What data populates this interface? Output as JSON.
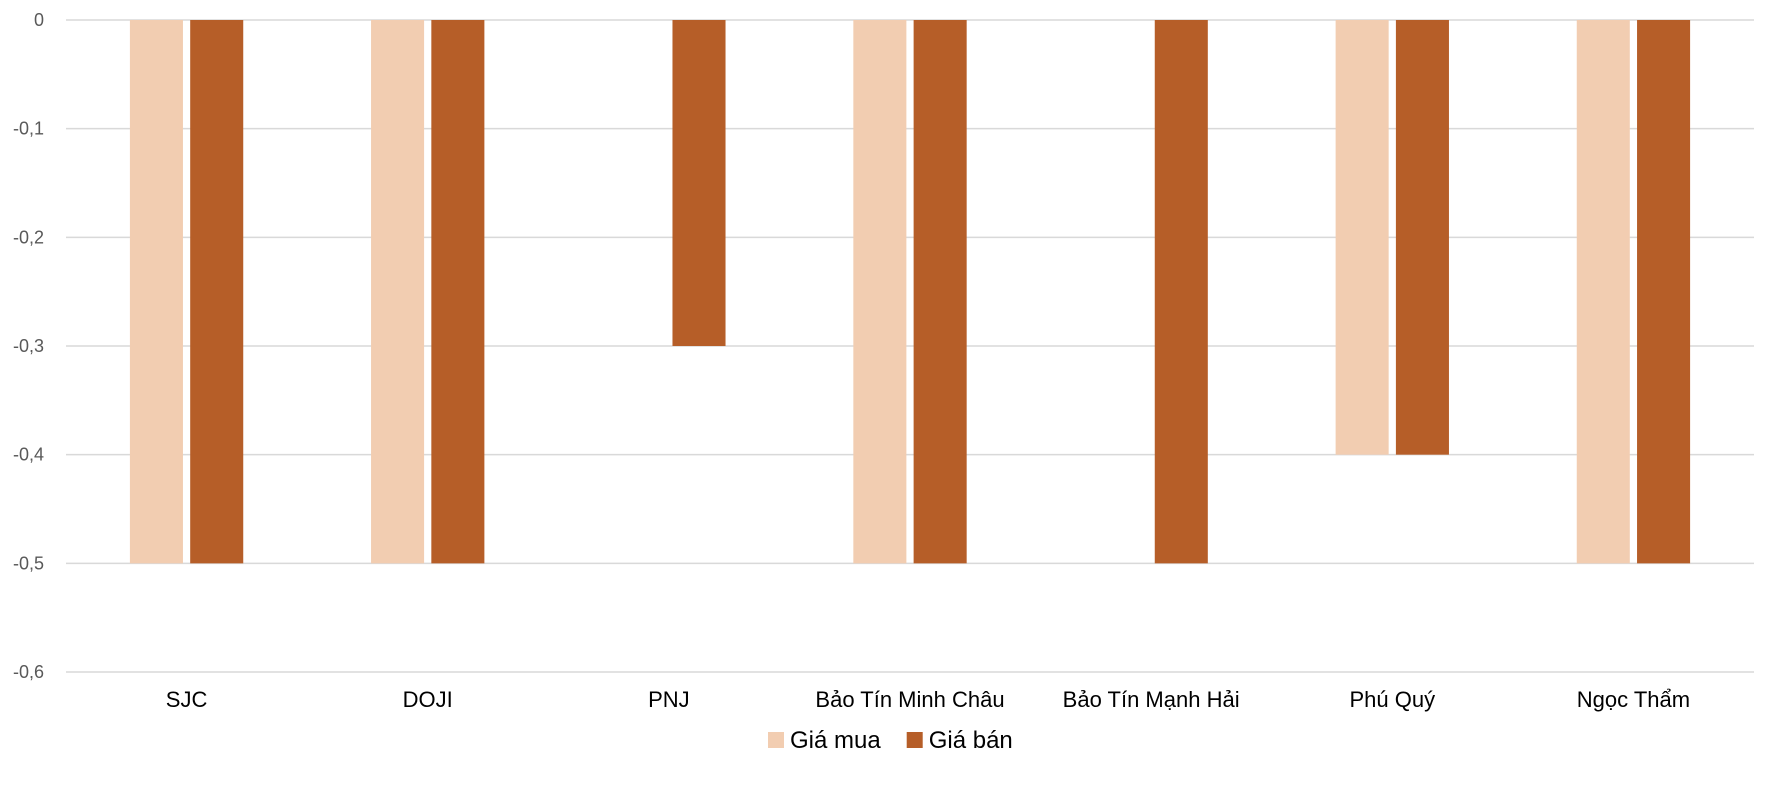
{
  "chart_data": {
    "type": "bar",
    "categories": [
      "SJC",
      "DOJI",
      "PNJ",
      "Bảo Tín Minh Châu",
      "Bảo Tín Mạnh Hải",
      "Phú Quý",
      "Ngọc Thẩm"
    ],
    "series": [
      {
        "name": "Giá mua",
        "color": "#F2CDB1",
        "values": [
          -0.5,
          -0.5,
          0,
          -0.5,
          0,
          -0.4,
          -0.5
        ]
      },
      {
        "name": "Giá bán",
        "color": "#B65E28",
        "values": [
          -0.5,
          -0.5,
          -0.3,
          -0.5,
          -0.5,
          -0.4,
          -0.5
        ]
      }
    ],
    "title": "",
    "xlabel": "",
    "ylabel": "",
    "ylim": [
      -0.6,
      0
    ],
    "yticks": [
      0,
      -0.1,
      -0.2,
      -0.3,
      -0.4,
      -0.5,
      -0.6
    ],
    "ytick_labels": [
      "0",
      "-0,1",
      "-0,2",
      "-0,3",
      "-0,4",
      "-0,5",
      "-0,6"
    ],
    "grid": true,
    "legend_position": "bottom"
  }
}
